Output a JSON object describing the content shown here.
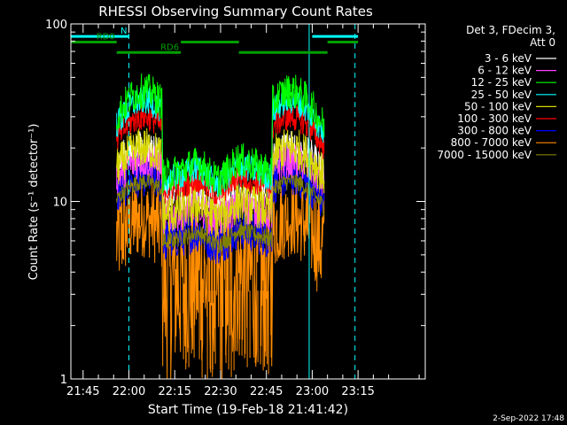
{
  "chart_data": {
    "type": "line",
    "title": "RHESSI Observing Summary Count Rates",
    "xlabel": "Start Time (19-Feb-18 21:41:42)",
    "ylabel": "Count Rate (s⁻¹ detector⁻¹)",
    "yscale": "log",
    "ylim": [
      1,
      100
    ],
    "xlim_minutes": [
      -19,
      97
    ],
    "x_ticks": [
      "21:45",
      "22:00",
      "22:15",
      "22:30",
      "22:45",
      "23:00",
      "23:15"
    ],
    "x_tick_minutes": [
      -15,
      0,
      15,
      30,
      45,
      60,
      75
    ],
    "y_ticks": [
      "1",
      "10",
      "100"
    ],
    "y_tick_values": [
      1,
      10,
      100
    ],
    "legend_header": [
      "Det 3, FDecim 3,",
      "Att 0"
    ],
    "legend_position": "right",
    "series": [
      {
        "name": "3 - 6 keV",
        "color": "#ffffff",
        "peak": 20,
        "trough": 9,
        "noise": 0.1
      },
      {
        "name": "6 - 12 keV",
        "color": "#ff40ff",
        "peak": 17,
        "trough": 7,
        "noise": 0.1
      },
      {
        "name": "12 - 25 keV",
        "color": "#00ff00",
        "peak": 42,
        "trough": 11,
        "noise": 0.1
      },
      {
        "name": "25 - 50 keV",
        "color": "#00ffff",
        "peak": 37,
        "trough": 10.5,
        "noise": 0.08
      },
      {
        "name": "50 - 100 keV",
        "color": "#d8d800",
        "peak": 20,
        "trough": 7,
        "noise": 0.12
      },
      {
        "name": "100 - 300 keV",
        "color": "#ff0000",
        "peak": 30,
        "trough": 9.5,
        "noise": 0.08
      },
      {
        "name": "300 - 800 keV",
        "color": "#0000ff",
        "peak": 14,
        "trough": 5,
        "noise": 0.12
      },
      {
        "name": "800 - 7000 keV",
        "color": "#ff8c00",
        "peak": 8,
        "trough": 2.8,
        "noise": 0.22
      },
      {
        "name": "7000 - 15000 keV",
        "color": "#808000",
        "peak": 13,
        "trough": 5,
        "noise": 0.05
      }
    ],
    "data_window_minutes": [
      -4,
      64
    ],
    "peaks_minutes": [
      5,
      53
    ],
    "trough_minute": 31,
    "attenuator_bars": [
      {
        "label": "N",
        "color": "#00ffff",
        "y_value": 85,
        "segments": [
          [
            -19,
            0
          ],
          [
            60,
            75
          ]
        ]
      },
      {
        "label": "RD0",
        "color": "#00a000",
        "y_value": 79,
        "segments": [
          [
            -19,
            -4
          ],
          [
            17,
            36
          ],
          [
            65,
            75
          ]
        ]
      },
      {
        "label": "RD6",
        "color": "#00a000",
        "y_value": 69,
        "segments": [
          [
            -4,
            17
          ],
          [
            36,
            65
          ]
        ]
      }
    ],
    "cyan_vlines_solid_minutes": [
      -19,
      59
    ],
    "cyan_vlines_dashed_minutes": [
      0,
      74
    ],
    "grid": false
  },
  "footer": {
    "date_stamp": "2-Sep-2022 17:48"
  }
}
